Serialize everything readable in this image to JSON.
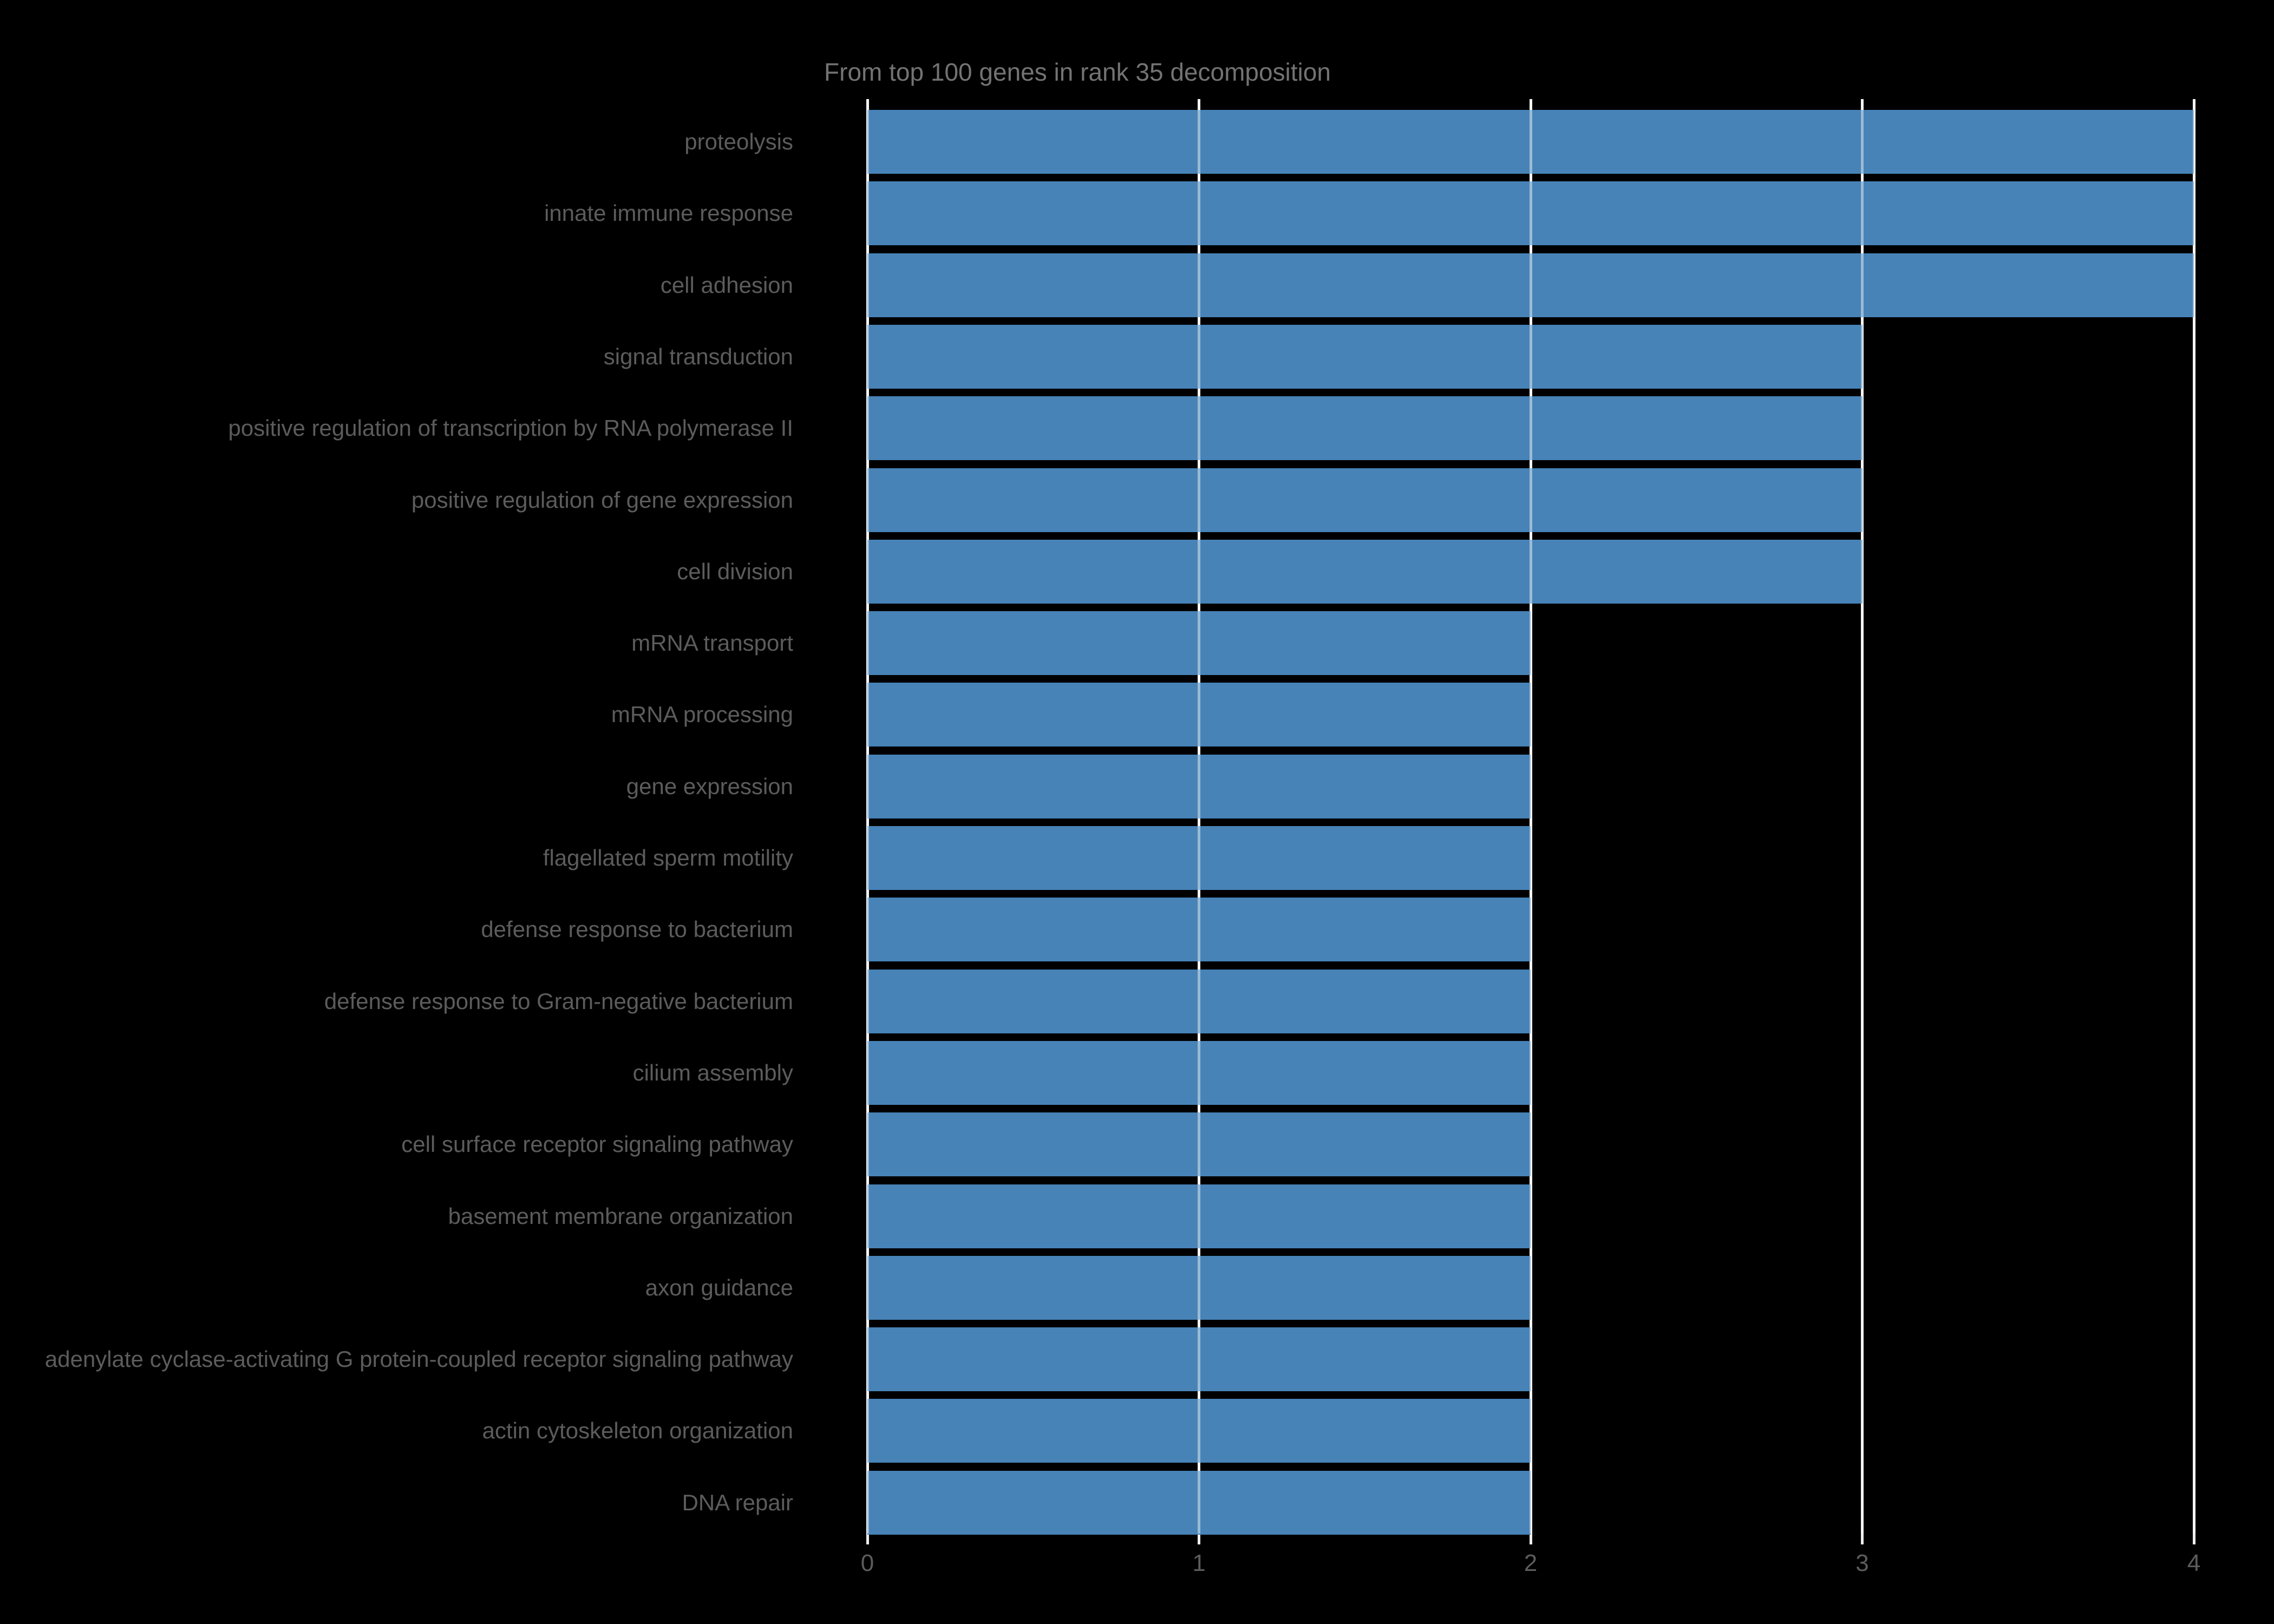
{
  "title": {
    "text": "From top 100 genes in rank 35 decomposition"
  },
  "colors": {
    "background": "#000000",
    "bar": "#4783b7",
    "grid": "#ededed",
    "title_text": "#737373",
    "category_label_text": "#5c5c5c",
    "tick_label_text": "#5c5c5c"
  },
  "chart_data": {
    "type": "bar",
    "orientation": "horizontal",
    "title": "From top 100 genes in rank 35 decomposition",
    "categories": [
      "proteolysis",
      "innate immune response",
      "cell adhesion",
      "signal transduction",
      "positive regulation of transcription by RNA polymerase II",
      "positive regulation of gene expression",
      "cell division",
      "mRNA transport",
      "mRNA processing",
      "gene expression",
      "flagellated sperm motility",
      "defense response to bacterium",
      "defense response to Gram-negative bacterium",
      "cilium assembly",
      "cell surface receptor signaling pathway",
      "basement membrane organization",
      "axon guidance",
      "adenylate cyclase-activating G protein-coupled receptor signaling pathway",
      "actin cytoskeleton organization",
      "DNA repair"
    ],
    "values": [
      4,
      4,
      4,
      3,
      3,
      3,
      3,
      2,
      2,
      2,
      2,
      2,
      2,
      2,
      2,
      2,
      2,
      2,
      2,
      2
    ],
    "xlabel": "",
    "ylabel": "",
    "xlim": [
      0,
      4
    ],
    "xticks": [
      0,
      1,
      2,
      3,
      4
    ],
    "grid": true,
    "grid_axis": "x",
    "legend_position": "none"
  }
}
